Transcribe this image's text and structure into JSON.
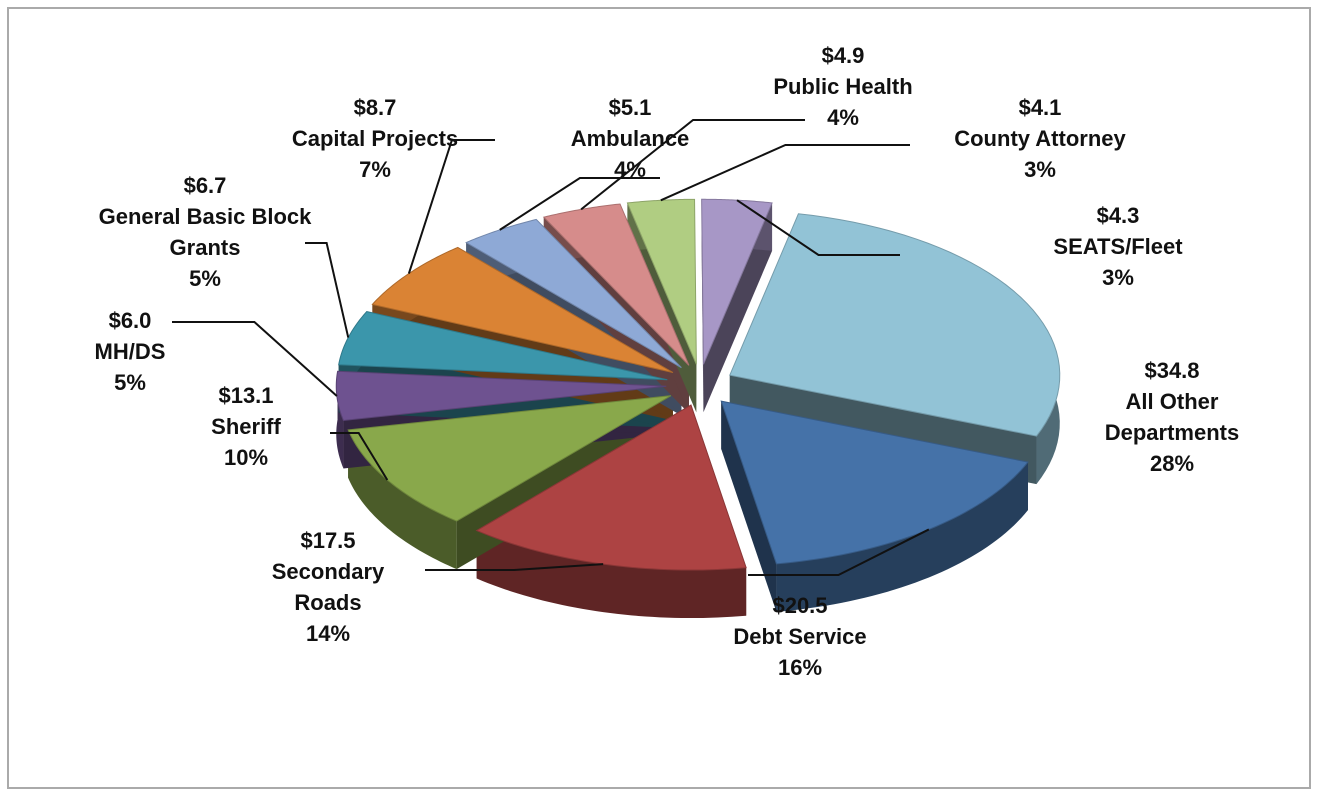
{
  "chart_data": {
    "type": "pie",
    "categories": [
      "All Other Departments",
      "Debt Service",
      "Secondary Roads",
      "Sheriff",
      "MH/DS",
      "General Basic Block Grants",
      "Capital Projects",
      "Ambulance",
      "Public Health",
      "County Attorney",
      "SEATS/Fleet"
    ],
    "values": [
      34.8,
      20.5,
      17.5,
      13.1,
      6.0,
      6.7,
      8.7,
      5.1,
      4.9,
      4.1,
      4.3
    ],
    "value_labels": [
      "$34.8",
      "$20.5",
      "$17.5",
      "$13.1",
      "$6.0",
      "$6.7",
      "$8.7",
      "$5.1",
      "$4.9",
      "$4.1",
      "$4.3"
    ],
    "percents": [
      28,
      16,
      14,
      10,
      5,
      5,
      7,
      4,
      4,
      3,
      3
    ],
    "percent_labels": [
      "28%",
      "16%",
      "14%",
      "10%",
      "5%",
      "5%",
      "7%",
      "4%",
      "4%",
      "3%",
      "3%"
    ],
    "colors": [
      "#92c3d6",
      "#4572a8",
      "#ad4343",
      "#89a84b",
      "#6e5290",
      "#3b96ab",
      "#da8334",
      "#8ea9d6",
      "#d68c8b",
      "#b0cd82",
      "#a797c6"
    ]
  }
}
